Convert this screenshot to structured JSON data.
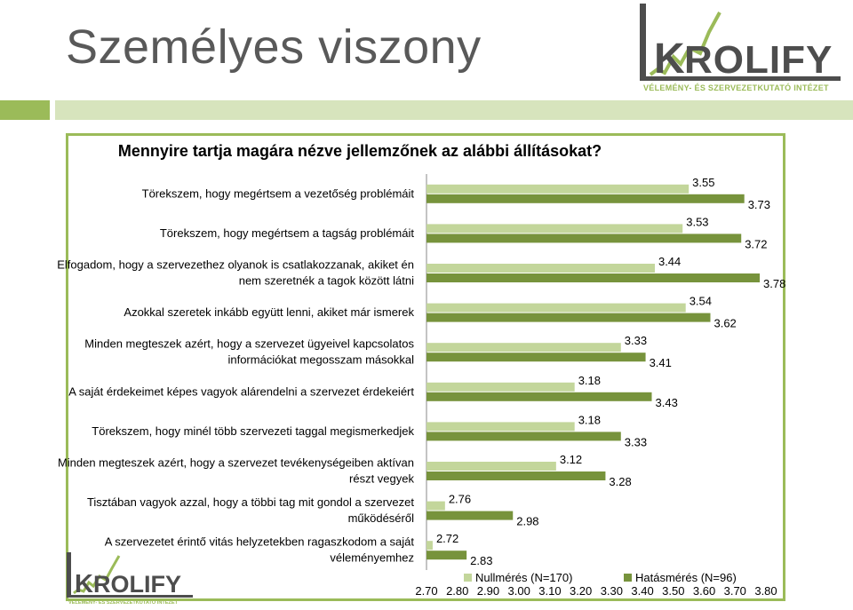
{
  "slide": {
    "title": "Személyes viszony"
  },
  "logo": {
    "name": "KROLIFY",
    "tagline": "VÉLEMÉNY- ÉS SZERVEZETKUTATÓ INTÉZET"
  },
  "colors": {
    "nullmeres": "#c3d69b",
    "hatasmeres": "#77933c",
    "frame": "#9bbb59",
    "accent": "#d7e4bd"
  },
  "chart_data": {
    "type": "bar",
    "orientation": "horizontal",
    "title": "Mennyire tartja magára nézve jellemzőnek az alábbi állításokat?",
    "categories": [
      [
        "Törekszem, hogy megértsem a vezetőség problémáit"
      ],
      [
        "Törekszem, hogy megértsem a tagság problémáit"
      ],
      [
        "Elfogadom, hogy a szervezethez olyanok is csatlakozzanak, akiket én",
        "nem szeretnék a tagok között látni"
      ],
      [
        "Azokkal szeretek inkább együtt lenni, akiket már ismerek"
      ],
      [
        "Minden megteszek azért, hogy a szervezet ügyeivel kapcsolatos",
        "információkat megosszam másokkal"
      ],
      [
        "A saját érdekeimet képes vagyok alárendelni a szervezet érdekeiért"
      ],
      [
        "Törekszem, hogy minél több szervezeti taggal megismerkedjek"
      ],
      [
        "Minden megteszek azért, hogy a szervezet tevékenységeiben aktívan",
        "részt vegyek"
      ],
      [
        "Tisztában vagyok azzal, hogy a többi tag mit gondol a szervezet",
        "működéséről"
      ],
      [
        "A szervezetet érintő vitás helyzetekben ragaszkodom a saját",
        "véleményemhez"
      ]
    ],
    "series": [
      {
        "name": "Nullmérés (N=170)",
        "color": "#c3d69b",
        "values": [
          3.55,
          3.53,
          3.44,
          3.54,
          3.33,
          3.18,
          3.18,
          3.12,
          2.76,
          2.72
        ]
      },
      {
        "name": "Hatásmérés (N=96)",
        "color": "#77933c",
        "values": [
          3.73,
          3.72,
          3.78,
          3.62,
          3.41,
          3.43,
          3.33,
          3.28,
          2.98,
          2.83
        ]
      }
    ],
    "xlim": [
      2.7,
      3.8
    ],
    "xticks": [
      "2.70",
      "2.80",
      "2.90",
      "3.00",
      "3.10",
      "3.20",
      "3.30",
      "3.40",
      "3.50",
      "3.60",
      "3.70",
      "3.80"
    ],
    "grid": false,
    "legend": "bottom"
  }
}
